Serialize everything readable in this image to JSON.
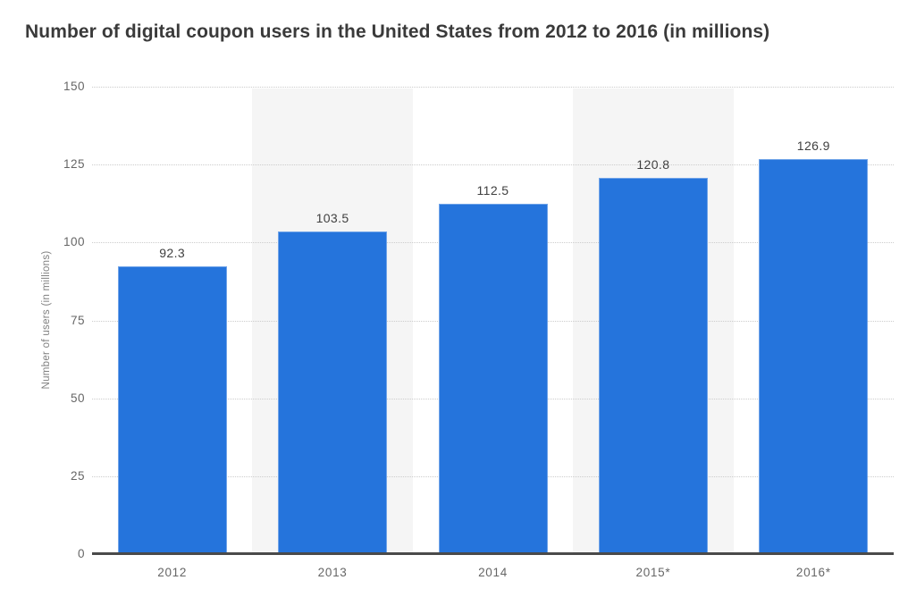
{
  "header": {
    "title": "Number of digital coupon users in the United States from 2012 to 2016 (in millions)"
  },
  "colors": {
    "bar": "#2574DC",
    "plot_band": "#f5f5f5",
    "grid_line": "#cccccc",
    "axis_line": "#4a4a4a",
    "title_text": "#3a3a3a",
    "tick_text": "#666666",
    "value_text": "#3f3f3f",
    "axis_title_text": "#7f7f7f",
    "background": "#ffffff"
  },
  "chart_data": {
    "type": "bar",
    "title": "Number of digital coupon users in the United States from 2012 to 2016 (in millions)",
    "categories": [
      "2012",
      "2013",
      "2014",
      "2015*",
      "2016*"
    ],
    "values": [
      92.3,
      103.5,
      112.5,
      120.8,
      126.9
    ],
    "value_labels": [
      "92.3",
      "103.5",
      "112.5",
      "120.8",
      "126.9"
    ],
    "xlabel": "",
    "ylabel": "Number of users (in millions)",
    "ylim": [
      0,
      150
    ],
    "yticks": [
      0,
      25,
      50,
      75,
      100,
      125,
      150
    ],
    "grid": "horizontal-dotted",
    "plot_bands_behind_categories": [
      "2013",
      "2015*"
    ],
    "legend": "none"
  }
}
